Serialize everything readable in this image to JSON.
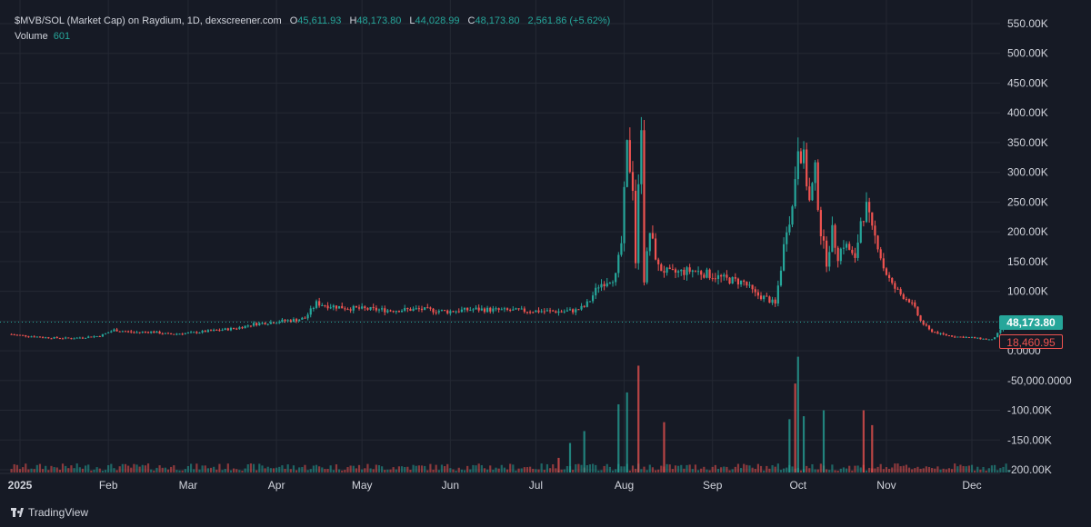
{
  "header": {
    "symbol": "$MVB/SOL (Market Cap) on Raydium, 1D, dexscreener.com",
    "open_label": "O",
    "open_value": "45,611.93",
    "high_label": "H",
    "high_value": "48,173.80",
    "low_label": "L",
    "low_value": "44,028.99",
    "close_label": "C",
    "close_value": "48,173.80",
    "change": "2,561.86 (+5.62%)",
    "volume_label": "Volume",
    "volume_value": "601"
  },
  "price_badges": {
    "last": "48,173.80",
    "low": "18,460.95"
  },
  "branding": {
    "name": "TradingView"
  },
  "colors": {
    "up": "#26a69a",
    "down": "#ef5350",
    "background": "#161a25",
    "grid": "#242833",
    "text": "#d1d4dc"
  },
  "chart_data": {
    "type": "candlestick",
    "y_axis_labels": [
      "550.00K",
      "500.00K",
      "450.00K",
      "400.00K",
      "350.00K",
      "300.00K",
      "250.00K",
      "200.00K",
      "150.00K",
      "100.00K",
      "50.00K",
      "0.0000",
      "-50,000.0000",
      "-100.00K",
      "-150.00K",
      "-200.00K"
    ],
    "y_axis_values": [
      550000,
      500000,
      450000,
      400000,
      350000,
      300000,
      250000,
      200000,
      150000,
      100000,
      50000,
      0,
      -50000,
      -100000,
      -150000,
      -200000
    ],
    "ylim": [
      -200000,
      550000
    ],
    "x_axis_labels": [
      {
        "label": "2025",
        "day": 0
      },
      {
        "label": "Feb",
        "day": 31
      },
      {
        "label": "Mar",
        "day": 59
      },
      {
        "label": "Apr",
        "day": 90
      },
      {
        "label": "May",
        "day": 120
      },
      {
        "label": "Jun",
        "day": 151
      },
      {
        "label": "Jul",
        "day": 181
      },
      {
        "label": "Aug",
        "day": 212
      },
      {
        "label": "Sep",
        "day": 243
      },
      {
        "label": "Oct",
        "day": 273
      },
      {
        "label": "Nov",
        "day": 304
      },
      {
        "label": "Dec",
        "day": 334
      }
    ],
    "x_start": "2024-12-27",
    "x_end": "2025-12-09",
    "close_series": [
      [
        -4,
        28000
      ],
      [
        0,
        26000
      ],
      [
        10,
        22000
      ],
      [
        18,
        21000
      ],
      [
        28,
        25000
      ],
      [
        33,
        35000
      ],
      [
        40,
        31000
      ],
      [
        46,
        32000
      ],
      [
        52,
        28000
      ],
      [
        60,
        30000
      ],
      [
        68,
        34000
      ],
      [
        76,
        38000
      ],
      [
        82,
        45000
      ],
      [
        88,
        48000
      ],
      [
        92,
        50000
      ],
      [
        97,
        52000
      ],
      [
        100,
        55000
      ],
      [
        104,
        80000
      ],
      [
        108,
        76000
      ],
      [
        115,
        72000
      ],
      [
        122,
        70000
      ],
      [
        130,
        68000
      ],
      [
        140,
        70000
      ],
      [
        150,
        66000
      ],
      [
        160,
        70000
      ],
      [
        170,
        68000
      ],
      [
        180,
        67000
      ],
      [
        190,
        66000
      ],
      [
        195,
        68000
      ],
      [
        198,
        74000
      ],
      [
        200,
        85000
      ],
      [
        203,
        110000
      ],
      [
        206,
        118000
      ],
      [
        209,
        125000
      ],
      [
        211,
        180000
      ],
      [
        213,
        340000
      ],
      [
        215,
        280000
      ],
      [
        216,
        150000
      ],
      [
        218,
        390000
      ],
      [
        219,
        120000
      ],
      [
        221,
        200000
      ],
      [
        224,
        140000
      ],
      [
        228,
        130000
      ],
      [
        236,
        135000
      ],
      [
        242,
        128000
      ],
      [
        248,
        120000
      ],
      [
        254,
        115000
      ],
      [
        258,
        95000
      ],
      [
        262,
        88000
      ],
      [
        265,
        78000
      ],
      [
        267,
        140000
      ],
      [
        269,
        210000
      ],
      [
        271,
        240000
      ],
      [
        273,
        350000
      ],
      [
        275,
        320000
      ],
      [
        277,
        250000
      ],
      [
        279,
        300000
      ],
      [
        281,
        200000
      ],
      [
        283,
        150000
      ],
      [
        285,
        200000
      ],
      [
        287,
        160000
      ],
      [
        289,
        180000
      ],
      [
        291,
        170000
      ],
      [
        293,
        150000
      ],
      [
        295,
        220000
      ],
      [
        297,
        240000
      ],
      [
        299,
        200000
      ],
      [
        301,
        180000
      ],
      [
        303,
        140000
      ],
      [
        306,
        110000
      ],
      [
        309,
        95000
      ],
      [
        312,
        85000
      ],
      [
        314,
        70000
      ],
      [
        316,
        50000
      ],
      [
        319,
        35000
      ],
      [
        323,
        28000
      ],
      [
        328,
        24000
      ],
      [
        334,
        22000
      ],
      [
        341,
        18460
      ],
      [
        347,
        48173
      ]
    ],
    "volume_spikes": [
      {
        "day": 210,
        "value": -90000,
        "dir": "up"
      },
      {
        "day": 213,
        "value": -70000,
        "dir": "up"
      },
      {
        "day": 217,
        "value": -25000,
        "dir": "down"
      },
      {
        "day": 226,
        "value": -120000,
        "dir": "down"
      },
      {
        "day": 270,
        "value": -115000,
        "dir": "up"
      },
      {
        "day": 272,
        "value": -55000,
        "dir": "down"
      },
      {
        "day": 273,
        "value": -10000,
        "dir": "up"
      },
      {
        "day": 275,
        "value": -110000,
        "dir": "up"
      },
      {
        "day": 282,
        "value": -100000,
        "dir": "up"
      },
      {
        "day": 296,
        "value": -100000,
        "dir": "down"
      },
      {
        "day": 299,
        "value": -125000,
        "dir": "down"
      },
      {
        "day": 198,
        "value": -135000,
        "dir": "up"
      },
      {
        "day": 193,
        "value": -155000,
        "dir": "up"
      },
      {
        "day": 189,
        "value": -180000,
        "dir": "down"
      }
    ]
  }
}
